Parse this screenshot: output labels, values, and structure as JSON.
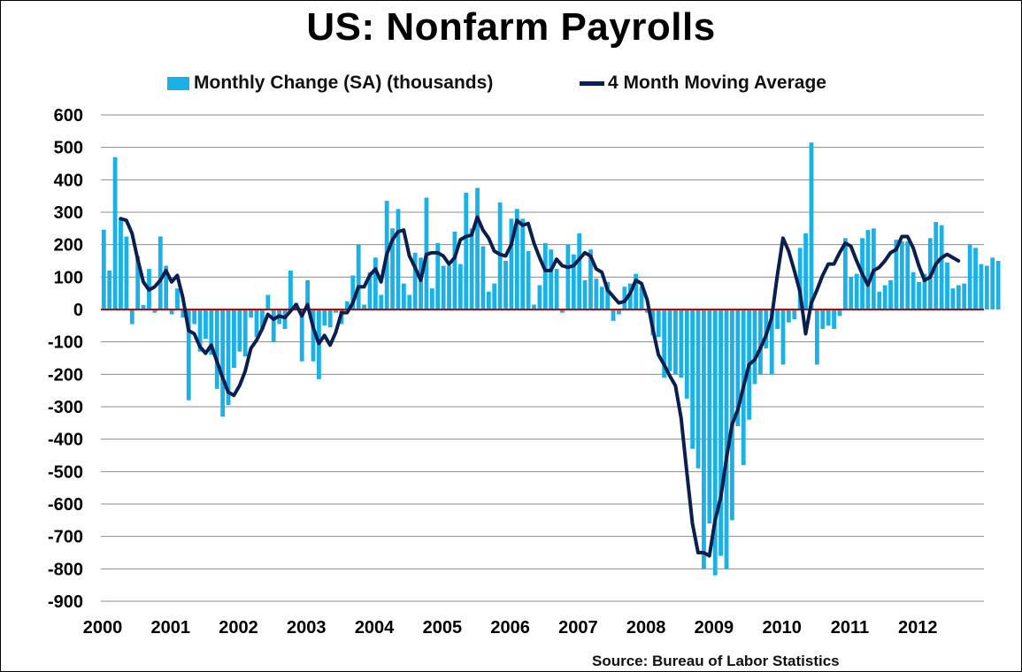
{
  "chart_data": {
    "type": "bar+line",
    "title": "US: Nonfarm Payrolls",
    "source": "Source: Bureau of Labor Statistics",
    "xlabel": "",
    "ylabel": "",
    "ylim": [
      -900,
      600
    ],
    "yticks": [
      "600",
      "500",
      "400",
      "300",
      "200",
      "100",
      "0",
      "-100",
      "-200",
      "-300",
      "-400",
      "-500",
      "-600",
      "-700",
      "-800",
      "-900"
    ],
    "ytick_values": [
      600,
      500,
      400,
      300,
      200,
      100,
      0,
      -100,
      -200,
      -300,
      -400,
      -500,
      -600,
      -700,
      -800,
      -900
    ],
    "xticks": [
      "2000",
      "2001",
      "2002",
      "2003",
      "2004",
      "2005",
      "2006",
      "2007",
      "2008",
      "2009",
      "2010",
      "2011",
      "2012"
    ],
    "grid": true,
    "legend_position": "top",
    "zero_line_color": "#cc0000",
    "series": [
      {
        "name": "Monthly Change (SA) (thousands)",
        "type": "bar",
        "color": "#1ab1e6",
        "values": [
          246,
          120,
          470,
          280,
          225,
          -45,
          165,
          14,
          125,
          -10,
          225,
          135,
          -15,
          65,
          -25,
          -280,
          -45,
          -130,
          -90,
          -140,
          -245,
          -330,
          -295,
          -180,
          -130,
          -145,
          -25,
          -85,
          -60,
          45,
          -100,
          -45,
          -60,
          120,
          20,
          -160,
          90,
          -160,
          -215,
          -50,
          -55,
          -10,
          -45,
          25,
          105,
          200,
          15,
          115,
          160,
          45,
          335,
          250,
          310,
          80,
          45,
          175,
          160,
          345,
          65,
          205,
          135,
          135,
          240,
          140,
          360,
          250,
          375,
          195,
          55,
          80,
          330,
          150,
          280,
          310,
          280,
          180,
          15,
          75,
          205,
          185,
          125,
          -10,
          200,
          170,
          235,
          90,
          185,
          95,
          70,
          85,
          -35,
          -15,
          70,
          80,
          110,
          70,
          -10,
          -80,
          -85,
          -210,
          -190,
          -200,
          -210,
          -275,
          -430,
          -490,
          -800,
          -660,
          -820,
          -760,
          -800,
          -650,
          -360,
          -480,
          -340,
          -230,
          -200,
          -120,
          -200,
          -60,
          -170,
          -40,
          -30,
          190,
          235,
          515,
          -170,
          -60,
          -50,
          -60,
          -20,
          220,
          100,
          110,
          220,
          245,
          250,
          55,
          75,
          90,
          215,
          210,
          210,
          115,
          85,
          110,
          220,
          270,
          260,
          145,
          65,
          75,
          80,
          200,
          190,
          140,
          135,
          160,
          150
        ]
      },
      {
        "name": "4 Month Moving Average",
        "type": "line",
        "color": "#0b1f4e",
        "values": [
          null,
          null,
          null,
          280,
          275,
          235,
          155,
          85,
          60,
          70,
          90,
          120,
          85,
          105,
          35,
          -65,
          -75,
          -115,
          -135,
          -110,
          -160,
          -210,
          -255,
          -265,
          -235,
          -190,
          -120,
          -95,
          -60,
          -15,
          -30,
          -20,
          -25,
          -5,
          15,
          -20,
          15,
          -55,
          -105,
          -80,
          -110,
          -70,
          -10,
          -10,
          20,
          70,
          70,
          105,
          125,
          85,
          170,
          215,
          240,
          245,
          165,
          130,
          90,
          170,
          175,
          175,
          165,
          140,
          160,
          215,
          225,
          230,
          285,
          245,
          220,
          180,
          170,
          165,
          200,
          275,
          260,
          265,
          205,
          160,
          120,
          120,
          155,
          135,
          130,
          135,
          155,
          175,
          165,
          125,
          115,
          60,
          40,
          20,
          25,
          50,
          90,
          80,
          30,
          -60,
          -140,
          -170,
          -205,
          -235,
          -335,
          -500,
          -660,
          -750,
          -750,
          -760,
          -650,
          -580,
          -460,
          -355,
          -310,
          -240,
          -170,
          -155,
          -120,
          -80,
          -25,
          105,
          220,
          180,
          120,
          55,
          -75,
          20,
          60,
          105,
          140,
          140,
          175,
          205,
          195,
          150,
          110,
          75,
          120,
          130,
          150,
          175,
          185,
          225,
          225,
          190,
          135,
          90,
          100,
          140,
          160,
          170,
          160,
          150
        ]
      }
    ]
  }
}
